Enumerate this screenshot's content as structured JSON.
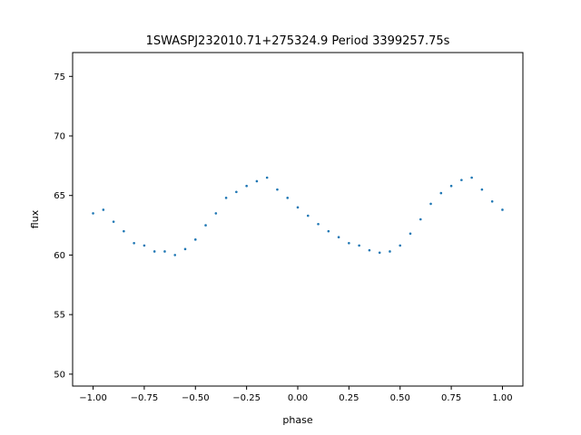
{
  "chart_data": {
    "type": "scatter",
    "title": "1SWASPJ232010.71+275324.9 Period 3399257.75s",
    "xlabel": "phase",
    "ylabel": "flux",
    "xlim": [
      -1.1,
      1.1
    ],
    "ylim": [
      49,
      77
    ],
    "xticks": [
      -1.0,
      -0.75,
      -0.5,
      -0.25,
      0.0,
      0.25,
      0.5,
      0.75,
      1.0
    ],
    "xtick_labels": [
      "−1.00",
      "−0.75",
      "−0.50",
      "−0.25",
      "0.00",
      "0.25",
      "0.50",
      "0.75",
      "1.00"
    ],
    "yticks": [
      50,
      55,
      60,
      65,
      70,
      75
    ],
    "ytick_labels": [
      "50",
      "55",
      "60",
      "65",
      "70",
      "75"
    ],
    "grid": false,
    "point_color": "#1f77b4",
    "series": [
      {
        "x": [
          -1.0,
          -0.95,
          -0.9,
          -0.85,
          -0.8,
          -0.75,
          -0.7,
          -0.65,
          -0.6,
          -0.55,
          -0.5,
          -0.45,
          -0.4,
          -0.35,
          -0.3,
          -0.25,
          -0.2,
          -0.15,
          -0.1,
          -0.05,
          0.0,
          0.05,
          0.1,
          0.15,
          0.2,
          0.25,
          0.3,
          0.35,
          0.4,
          0.45,
          0.5,
          0.55,
          0.6,
          0.65,
          0.7,
          0.75,
          0.8,
          0.85,
          0.9,
          0.95,
          1.0
        ],
        "y": [
          63.5,
          63.8,
          62.8,
          62.0,
          61.0,
          60.8,
          60.3,
          60.3,
          60.0,
          60.5,
          61.3,
          62.5,
          63.5,
          64.8,
          65.3,
          65.8,
          66.2,
          66.5,
          65.5,
          64.8,
          64.0,
          63.3,
          62.6,
          62.0,
          61.5,
          61.0,
          60.8,
          60.4,
          60.2,
          60.3,
          60.8,
          61.8,
          63.0,
          64.3,
          65.2,
          65.8,
          66.3,
          66.5,
          65.5,
          64.5,
          63.8
        ]
      }
    ]
  }
}
